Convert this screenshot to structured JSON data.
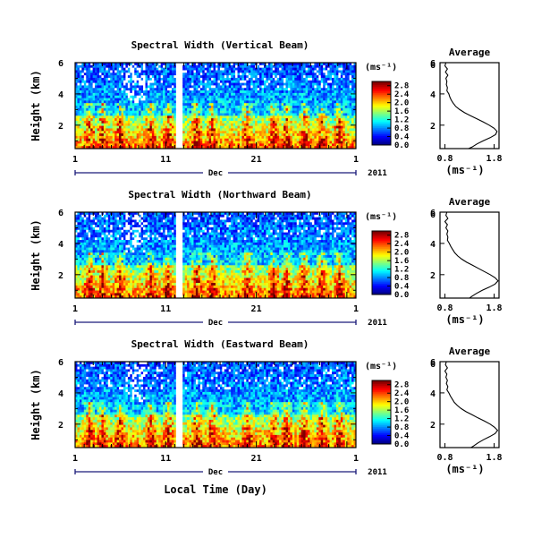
{
  "figure": {
    "xlabel": "Local Time (Day)",
    "xtick_labels": [
      "1",
      "11",
      "21",
      "1"
    ],
    "month_label": "Dec",
    "year_label": "2011",
    "ylabel": "Height (km)",
    "unit_label": "(ms⁻¹)",
    "avg_title": "Average",
    "avg_xticks": [
      "0.8",
      "1.8"
    ]
  },
  "chart_data": [
    {
      "type": "heatmap",
      "title": "Spectral Width (Vertical Beam)",
      "x_range_days": [
        1,
        32
      ],
      "y_range_km": [
        0.5,
        6
      ],
      "y_ticks": [
        2,
        4,
        6
      ],
      "colorbar_ticks": [
        "0.0",
        "0.4",
        "0.8",
        "1.2",
        "1.6",
        "2.0",
        "2.4",
        "2.8"
      ],
      "colorbar_range": [
        0,
        3.0
      ],
      "panel_seed": 11
    },
    {
      "type": "heatmap",
      "title": "Spectral Width (Northward Beam)",
      "x_range_days": [
        1,
        32
      ],
      "y_range_km": [
        0.5,
        6
      ],
      "y_ticks": [
        2,
        4,
        6
      ],
      "colorbar_ticks": [
        "0.0",
        "0.4",
        "0.8",
        "1.2",
        "1.6",
        "2.0",
        "2.4",
        "2.8"
      ],
      "colorbar_range": [
        0,
        3.0
      ],
      "panel_seed": 23
    },
    {
      "type": "heatmap",
      "title": "Spectral Width (Eastward Beam)",
      "x_range_days": [
        1,
        32
      ],
      "y_range_km": [
        0.5,
        6
      ],
      "y_ticks": [
        2,
        4,
        6
      ],
      "colorbar_ticks": [
        "0.0",
        "0.4",
        "0.8",
        "1.2",
        "1.6",
        "2.0",
        "2.4",
        "2.8"
      ],
      "colorbar_range": [
        0,
        3.0
      ],
      "panel_seed": 37
    },
    {
      "type": "line",
      "title": "Average",
      "xlim": [
        0.7,
        1.9
      ],
      "ylim": [
        0.5,
        6
      ],
      "x": [
        0.82,
        0.8,
        0.85,
        0.81,
        0.86,
        0.82,
        0.84,
        0.83,
        0.85,
        0.84,
        0.88,
        0.9,
        0.93,
        0.97,
        1.02,
        1.1,
        1.2,
        1.32,
        1.45,
        1.58,
        1.7,
        1.8,
        1.86,
        1.83,
        1.72,
        1.58,
        1.45,
        1.35,
        1.28
      ],
      "y": [
        6.0,
        5.8,
        5.6,
        5.4,
        5.2,
        5.0,
        4.8,
        4.6,
        4.4,
        4.2,
        4.0,
        3.8,
        3.6,
        3.4,
        3.2,
        3.0,
        2.8,
        2.6,
        2.4,
        2.2,
        2.0,
        1.8,
        1.6,
        1.4,
        1.2,
        1.0,
        0.8,
        0.6,
        0.5
      ]
    },
    {
      "type": "line",
      "title": "Average",
      "xlim": [
        0.7,
        1.9
      ],
      "ylim": [
        0.5,
        6
      ],
      "x": [
        0.84,
        0.82,
        0.86,
        0.8,
        0.85,
        0.82,
        0.86,
        0.84,
        0.86,
        0.85,
        0.89,
        0.92,
        0.96,
        1.0,
        1.06,
        1.14,
        1.24,
        1.36,
        1.48,
        1.6,
        1.72,
        1.82,
        1.88,
        1.82,
        1.7,
        1.56,
        1.44,
        1.34,
        1.3
      ],
      "y": [
        6.0,
        5.8,
        5.6,
        5.4,
        5.2,
        5.0,
        4.8,
        4.6,
        4.4,
        4.2,
        4.0,
        3.8,
        3.6,
        3.4,
        3.2,
        3.0,
        2.8,
        2.6,
        2.4,
        2.2,
        2.0,
        1.8,
        1.6,
        1.4,
        1.2,
        1.0,
        0.8,
        0.6,
        0.5
      ]
    },
    {
      "type": "line",
      "title": "Average",
      "xlim": [
        0.7,
        1.9
      ],
      "ylim": [
        0.5,
        6
      ],
      "x": [
        0.83,
        0.81,
        0.85,
        0.8,
        0.84,
        0.82,
        0.85,
        0.83,
        0.86,
        0.84,
        0.88,
        0.91,
        0.95,
        0.99,
        1.05,
        1.13,
        1.23,
        1.35,
        1.47,
        1.6,
        1.72,
        1.81,
        1.87,
        1.82,
        1.71,
        1.58,
        1.47,
        1.38,
        1.33
      ],
      "y": [
        6.0,
        5.8,
        5.6,
        5.4,
        5.2,
        5.0,
        4.8,
        4.6,
        4.4,
        4.2,
        4.0,
        3.8,
        3.6,
        3.4,
        3.2,
        3.0,
        2.8,
        2.6,
        2.4,
        2.2,
        2.0,
        1.8,
        1.6,
        1.4,
        1.2,
        1.0,
        0.8,
        0.6,
        0.5
      ]
    }
  ]
}
